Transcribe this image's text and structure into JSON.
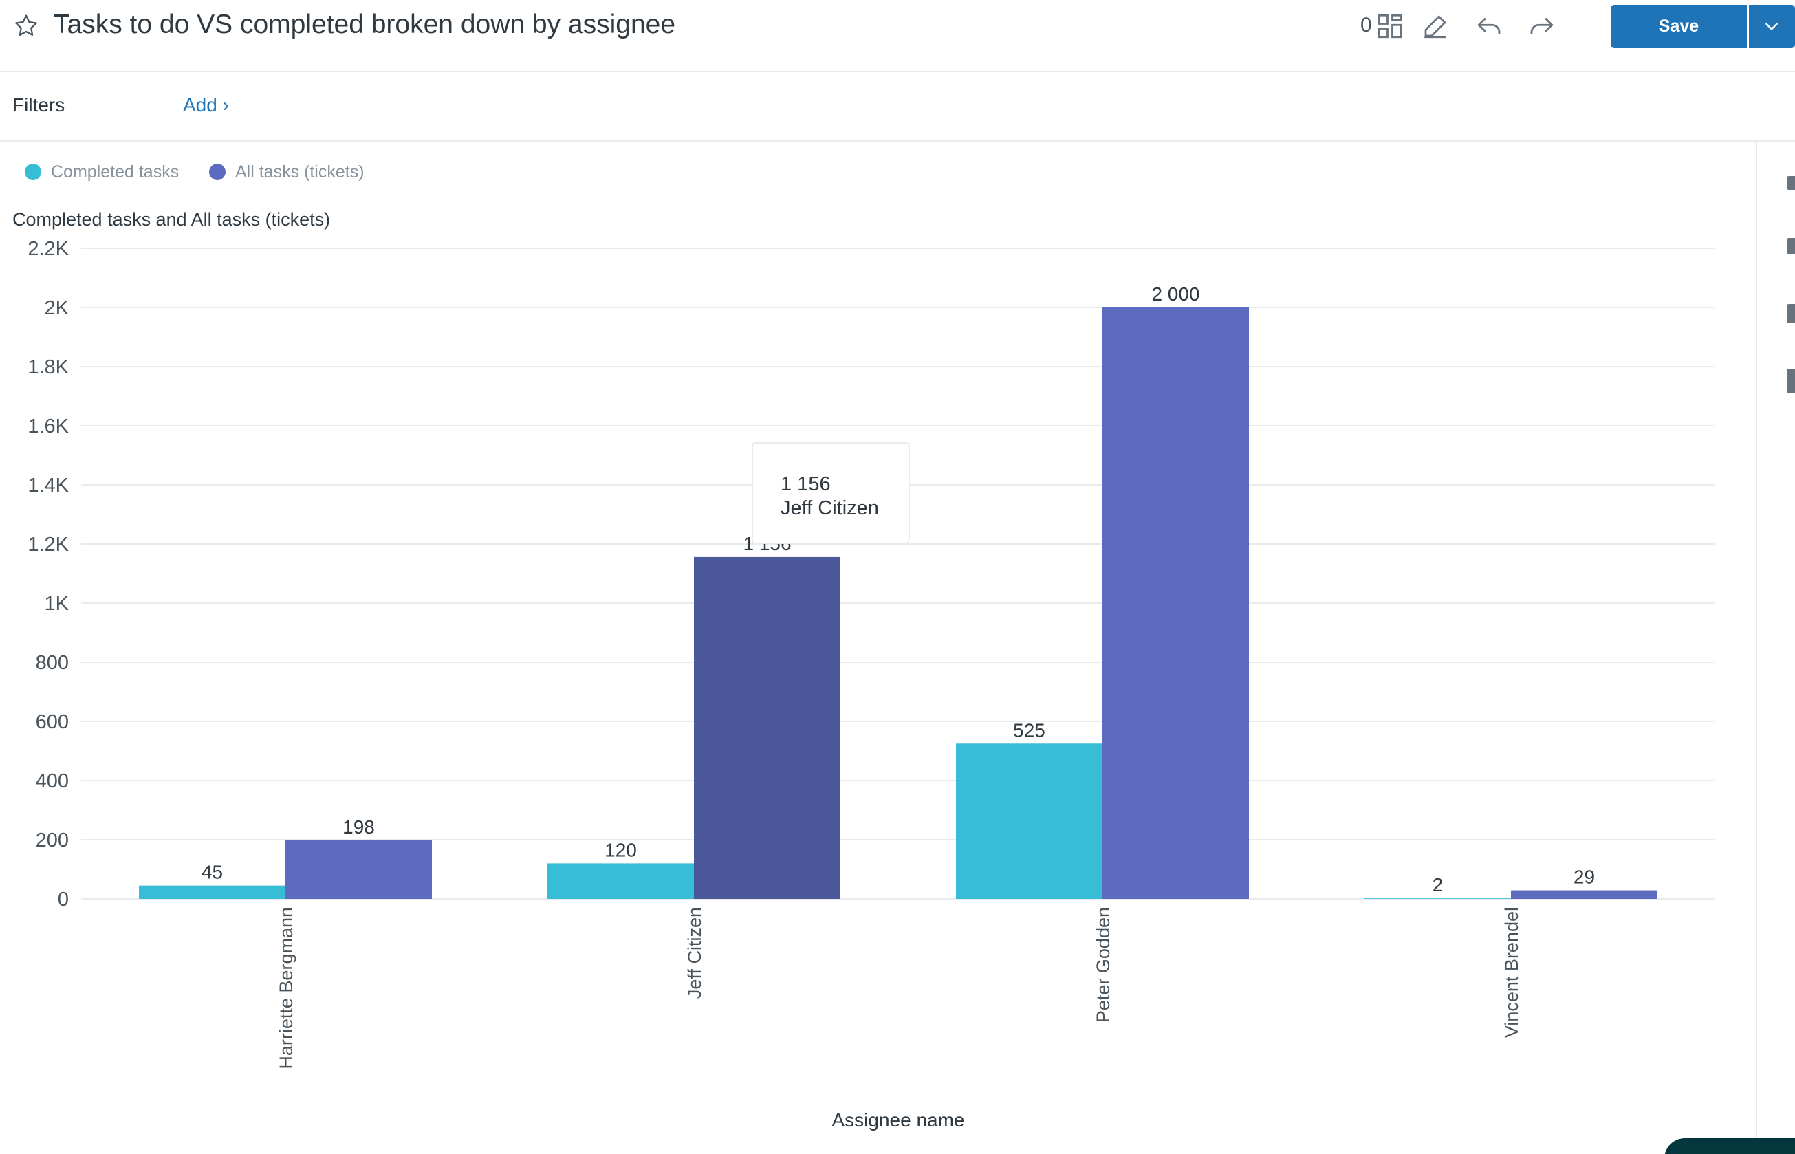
{
  "header": {
    "title": "Tasks to do VS completed broken down by assignee",
    "widget_count": "0",
    "save_label": "Save"
  },
  "filters": {
    "label": "Filters",
    "add_label": "Add ›"
  },
  "icons": {
    "favorite": "star-icon",
    "layout": "grid-icon",
    "edit": "edit-icon",
    "undo": "undo-icon",
    "redo": "redo-icon",
    "save_menu": "chevron-down-icon"
  },
  "colors": {
    "completed": "#38bdd6",
    "all_tasks": "#5c6bc0",
    "all_tasks_hover": "#4a5799",
    "primary": "#1f73b7"
  },
  "tooltip": {
    "value": "1 156",
    "category": "Jeff Citizen"
  },
  "chart_data": {
    "type": "bar",
    "title": "Completed tasks and All tasks (tickets)",
    "xlabel": "Assignee name",
    "ylabel": "",
    "ylim": [
      0,
      2200
    ],
    "yticks": [
      0,
      200,
      400,
      600,
      800,
      1000,
      1200,
      1400,
      1600,
      1800,
      2000,
      2200
    ],
    "ytick_labels": [
      "0",
      "200",
      "400",
      "600",
      "800",
      "1K",
      "1.2K",
      "1.4K",
      "1.6K",
      "1.8K",
      "2K",
      "2.2K"
    ],
    "categories": [
      "Harriette Bergmann",
      "Jeff Citizen",
      "Peter Godden",
      "Vincent Brendel"
    ],
    "series": [
      {
        "name": "Completed tasks",
        "values": [
          45,
          120,
          525,
          2
        ],
        "labels": [
          "45",
          "120",
          "525",
          "2"
        ]
      },
      {
        "name": "All tasks (tickets)",
        "values": [
          198,
          1156,
          2000,
          29
        ],
        "labels": [
          "198",
          "1 156",
          "2 000",
          "29"
        ]
      }
    ],
    "legend_position": "top-left",
    "grid": true,
    "highlighted": {
      "series": 1,
      "category": 1
    }
  }
}
